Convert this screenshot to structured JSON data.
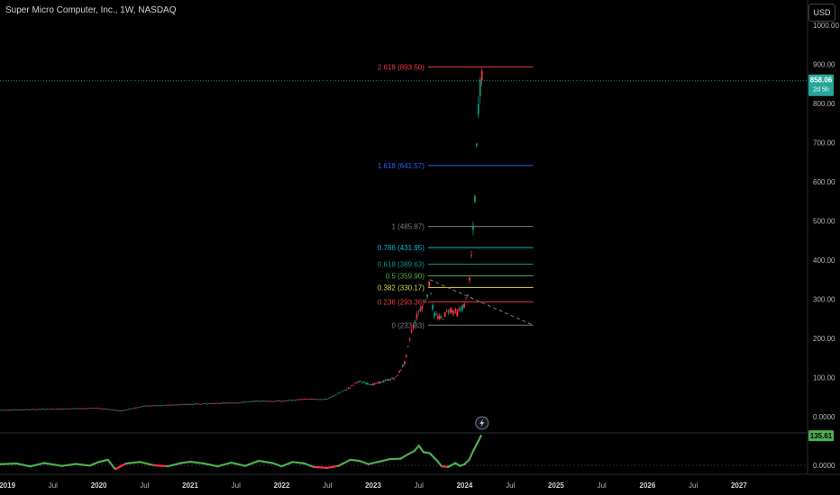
{
  "header": {
    "symbol_title": "Super Micro Computer, Inc., 1W, NASDAQ",
    "currency": "USD"
  },
  "chart_data": {
    "type": "candlestick",
    "title": "Super Micro Computer, Inc., 1W, NASDAQ",
    "y_axis": {
      "min": -5,
      "max": 1000,
      "ticks": [
        {
          "v": 1000,
          "label": "1000.00"
        },
        {
          "v": 900,
          "label": "900.00"
        },
        {
          "v": 800,
          "label": "800.00"
        },
        {
          "v": 700,
          "label": "700.00"
        },
        {
          "v": 600,
          "label": "600.00"
        },
        {
          "v": 500,
          "label": "500.00"
        },
        {
          "v": 400,
          "label": "400.00"
        },
        {
          "v": 300,
          "label": "300.00"
        },
        {
          "v": 200,
          "label": "200.00"
        },
        {
          "v": 100,
          "label": "100.00"
        },
        {
          "v": 0,
          "label": "0.0000"
        }
      ]
    },
    "x_axis": {
      "min": 2018.92,
      "max": 2027.75,
      "ticks": [
        {
          "t": 2019.0,
          "label": "2019"
        },
        {
          "t": 2019.5,
          "label": "Jul"
        },
        {
          "t": 2020.0,
          "label": "2020"
        },
        {
          "t": 2020.5,
          "label": "Jul"
        },
        {
          "t": 2021.0,
          "label": "2021"
        },
        {
          "t": 2021.5,
          "label": "Jul"
        },
        {
          "t": 2022.0,
          "label": "2022"
        },
        {
          "t": 2022.5,
          "label": "Jul"
        },
        {
          "t": 2023.0,
          "label": "2023"
        },
        {
          "t": 2023.5,
          "label": "Jul"
        },
        {
          "t": 2024.0,
          "label": "2024"
        },
        {
          "t": 2024.5,
          "label": "Jul"
        },
        {
          "t": 2025.0,
          "label": "2025"
        },
        {
          "t": 2025.5,
          "label": "Jul"
        },
        {
          "t": 2026.0,
          "label": "2026"
        },
        {
          "t": 2026.5,
          "label": "Jul"
        },
        {
          "t": 2027.0,
          "label": "2027"
        }
      ]
    },
    "price_path": [
      [
        2018.92,
        17
      ],
      [
        2019.5,
        20
      ],
      [
        2020.0,
        22
      ],
      [
        2020.25,
        15
      ],
      [
        2020.5,
        28
      ],
      [
        2021.0,
        32
      ],
      [
        2021.5,
        36
      ],
      [
        2021.75,
        40
      ],
      [
        2022.0,
        40
      ],
      [
        2022.25,
        45
      ],
      [
        2022.5,
        45
      ],
      [
        2022.75,
        75
      ],
      [
        2022.83,
        90
      ],
      [
        2023.0,
        82
      ],
      [
        2023.25,
        100
      ],
      [
        2023.35,
        140
      ],
      [
        2023.42,
        220
      ],
      [
        2023.5,
        270
      ],
      [
        2023.58,
        300
      ],
      [
        2023.62,
        345
      ],
      [
        2023.66,
        260
      ],
      [
        2023.75,
        250
      ],
      [
        2023.83,
        275
      ],
      [
        2023.92,
        265
      ],
      [
        2024.0,
        285
      ],
      [
        2024.05,
        330
      ],
      [
        2024.08,
        430
      ],
      [
        2024.1,
        500
      ],
      [
        2024.12,
        595
      ],
      [
        2024.14,
        750
      ],
      [
        2024.16,
        830
      ],
      [
        2024.18,
        858
      ],
      [
        2024.19,
        880
      ]
    ],
    "last_price": {
      "value": 858.06,
      "label": "858.06",
      "countdown": "2d 5h",
      "color": "#26a69a"
    },
    "fibonacci": {
      "x_start": 2023.62,
      "x_end": 2024.75,
      "levels": [
        {
          "label": "2.618 (893.50)",
          "value": 893.5,
          "color": "#f23645"
        },
        {
          "label": "1.618 (641.57)",
          "value": 641.57,
          "color": "#2962ff"
        },
        {
          "label": "1 (485.87)",
          "value": 485.87,
          "color": "#787b86"
        },
        {
          "label": "0.786 (431.95)",
          "value": 431.95,
          "color": "#00bcd4"
        },
        {
          "label": "0.618 (389.63)",
          "value": 389.63,
          "color": "#089981"
        },
        {
          "label": "0.5 (359.90)",
          "value": 359.9,
          "color": "#4caf50"
        },
        {
          "label": "0.382 (330.17)",
          "value": 330.17,
          "color": "#cddc39"
        },
        {
          "label": "0.236 (293.36)",
          "value": 293.36,
          "color": "#f23645"
        },
        {
          "label": "0 (233.83)",
          "value": 233.83,
          "color": "#787b86"
        }
      ]
    },
    "trend_line": {
      "from": [
        2023.62,
        350
      ],
      "to": [
        2024.75,
        233.83
      ],
      "style": "dashed",
      "color": "#787b86"
    },
    "indicator": {
      "last_value_label": "135.61",
      "axis_label": "0.0000",
      "y_min": -25,
      "y_max": 140,
      "up_color": "#4caf50",
      "down_color": "#f23645",
      "series": [
        [
          2018.92,
          5
        ],
        [
          2019.1,
          8
        ],
        [
          2019.25,
          -5
        ],
        [
          2019.4,
          10
        ],
        [
          2019.6,
          -3
        ],
        [
          2019.75,
          6
        ],
        [
          2019.9,
          -2
        ],
        [
          2020.0,
          15
        ],
        [
          2020.1,
          25
        ],
        [
          2020.18,
          -18
        ],
        [
          2020.3,
          8
        ],
        [
          2020.45,
          15
        ],
        [
          2020.6,
          0
        ],
        [
          2020.75,
          -5
        ],
        [
          2020.9,
          10
        ],
        [
          2021.0,
          16
        ],
        [
          2021.15,
          8
        ],
        [
          2021.3,
          -5
        ],
        [
          2021.45,
          12
        ],
        [
          2021.6,
          -3
        ],
        [
          2021.75,
          20
        ],
        [
          2021.9,
          10
        ],
        [
          2022.0,
          -5
        ],
        [
          2022.12,
          15
        ],
        [
          2022.25,
          8
        ],
        [
          2022.35,
          -8
        ],
        [
          2022.5,
          -12
        ],
        [
          2022.62,
          -3
        ],
        [
          2022.75,
          25
        ],
        [
          2022.85,
          20
        ],
        [
          2022.95,
          5
        ],
        [
          2023.05,
          15
        ],
        [
          2023.18,
          28
        ],
        [
          2023.3,
          30
        ],
        [
          2023.38,
          50
        ],
        [
          2023.45,
          65
        ],
        [
          2023.5,
          90
        ],
        [
          2023.55,
          60
        ],
        [
          2023.62,
          55
        ],
        [
          2023.7,
          20
        ],
        [
          2023.75,
          -5
        ],
        [
          2023.82,
          -8
        ],
        [
          2023.9,
          10
        ],
        [
          2023.95,
          -3
        ],
        [
          2024.0,
          5
        ],
        [
          2024.05,
          25
        ],
        [
          2024.1,
          70
        ],
        [
          2024.15,
          110
        ],
        [
          2024.18,
          135.61
        ]
      ]
    }
  }
}
